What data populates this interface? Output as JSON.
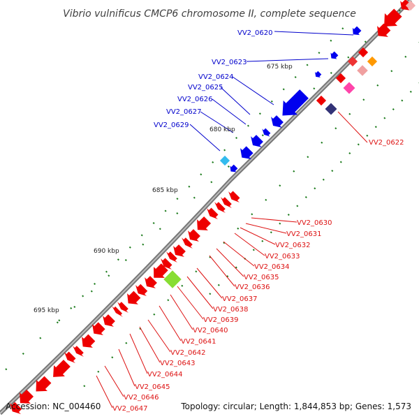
{
  "title": "Vibrio vulnificus CMCP6 chromosome II, complete sequence",
  "accession": "Accession: NC_004460",
  "summary": "Topology: circular; Length: 1,844,853 bp; Genes: 1,573",
  "scale_labels": [
    "675 kbp",
    "680 kbp",
    "685 kbp",
    "690 kbp",
    "695 kbp"
  ],
  "colors": {
    "backbone": "#8c8c8c",
    "forward_label": "#0000cc",
    "reverse_label": "#dd1111",
    "tick": "#1a7a1a"
  },
  "forward_labels": [
    "VV2_0620",
    "VV2_0623",
    "VV2_0624",
    "VV2_0625",
    "VV2_0626",
    "VV2_0627",
    "VV2_0629"
  ],
  "reverse_labels": [
    "VV2_0622",
    "VV2_0630",
    "VV2_0631",
    "VV2_0632",
    "VV2_0633",
    "VV2_0634",
    "VV2_0635",
    "VV2_0636",
    "VV2_0637",
    "VV2_0638",
    "VV2_0639",
    "VV2_0640",
    "VV2_0641",
    "VV2_0642",
    "VV2_0643",
    "VV2_0644",
    "VV2_0645",
    "VV2_0646",
    "VV2_0647"
  ]
}
